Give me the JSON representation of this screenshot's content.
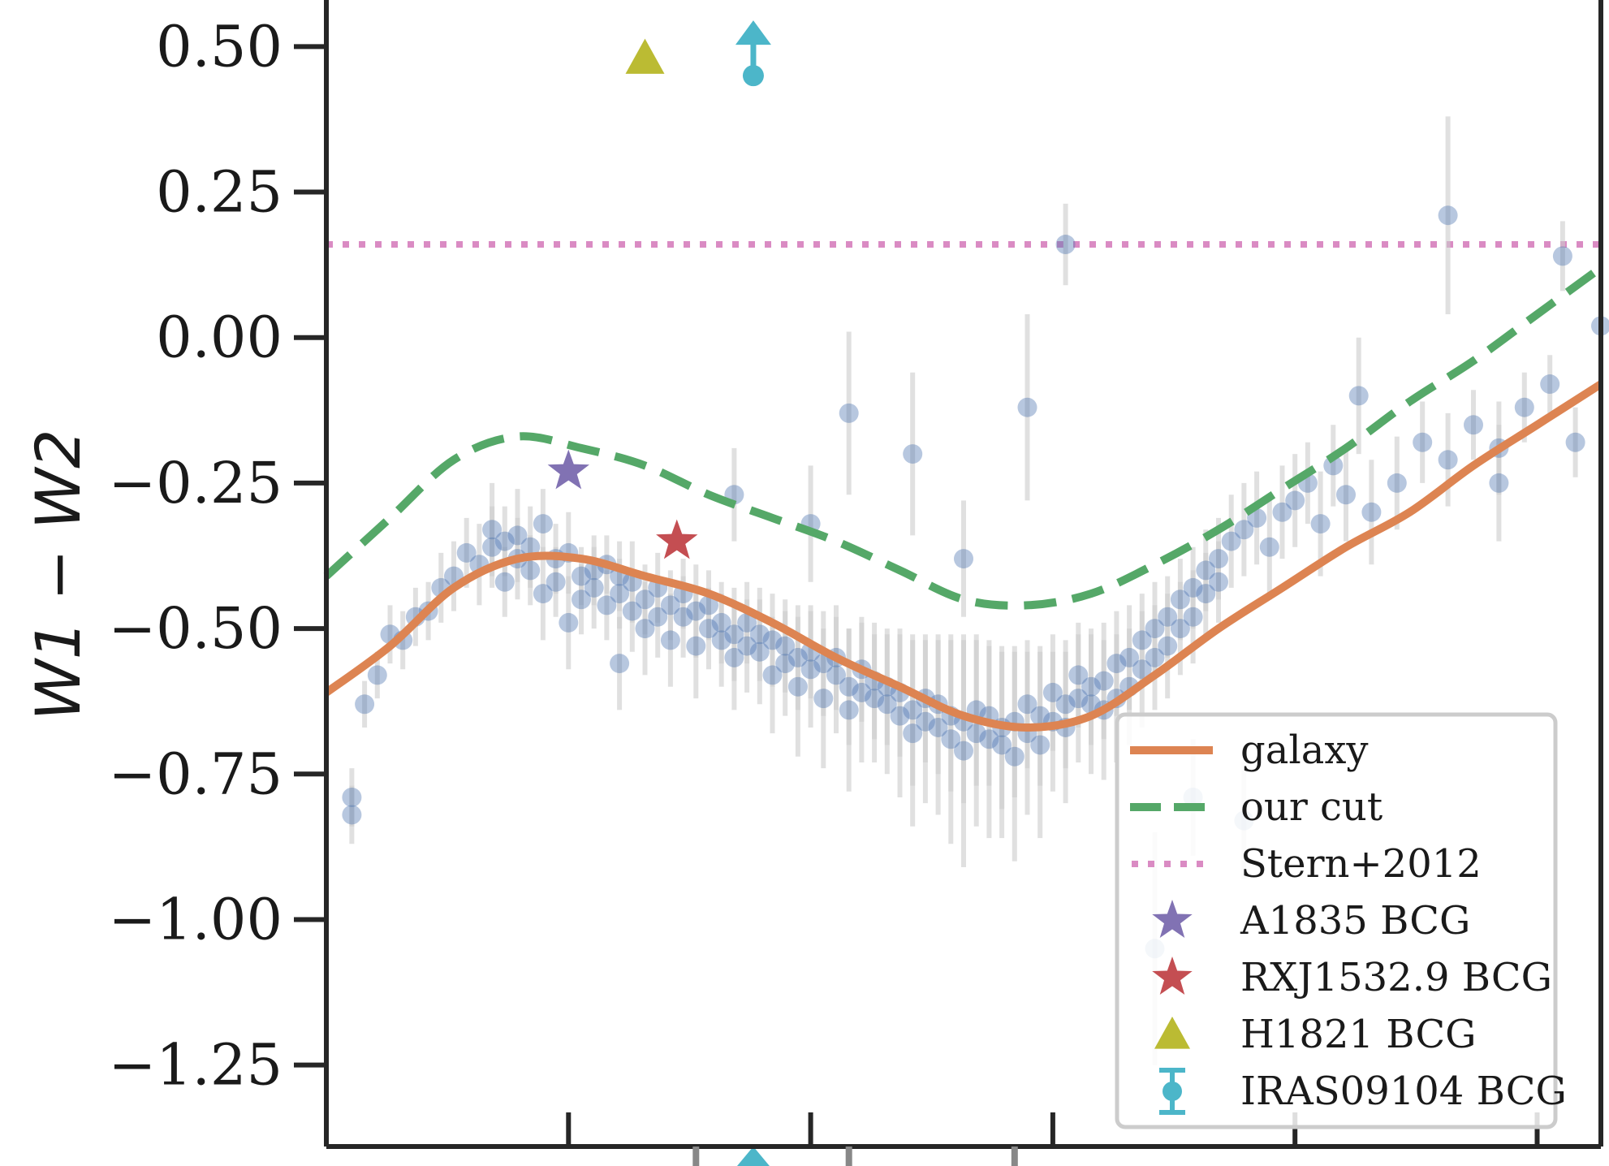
{
  "chart_data": {
    "type": "scatter",
    "ylabel": "W1 − W2",
    "ylim": [
      -1.39,
      0.58
    ],
    "xlim": [
      0,
      1
    ],
    "yticks": [
      {
        "value": 0.5,
        "label": "0.50"
      },
      {
        "value": 0.25,
        "label": "0.25"
      },
      {
        "value": 0.0,
        "label": "0.00"
      },
      {
        "value": -0.25,
        "label": "−0.25"
      },
      {
        "value": -0.5,
        "label": "−0.50"
      },
      {
        "value": -0.75,
        "label": "−0.75"
      },
      {
        "value": -1.0,
        "label": "−1.00"
      },
      {
        "value": -1.25,
        "label": "−1.25"
      }
    ],
    "xticks_major": [
      0.19,
      0.38,
      0.57,
      0.76,
      0.95
    ],
    "xticks_minor_bottom": [
      0.29,
      0.41,
      0.54
    ],
    "grid": false,
    "legend_position": "bottom-right",
    "colors": {
      "galaxy": "#dd8452",
      "cut": "#55a868",
      "stern": "#da8bc3",
      "points": "#4c72b0",
      "errorbars": "#cccccc",
      "a1835": "#8172b3",
      "rxj": "#c44e52",
      "h1821": "#bbbb33",
      "iras": "#4cb6c9"
    },
    "series": [
      {
        "name": "galaxy",
        "style": "solid",
        "x": [
          0.0,
          0.05,
          0.1,
          0.15,
          0.2,
          0.25,
          0.3,
          0.35,
          0.4,
          0.45,
          0.5,
          0.55,
          0.6,
          0.65,
          0.7,
          0.75,
          0.8,
          0.85,
          0.9,
          0.95,
          1.0
        ],
        "y": [
          -0.61,
          -0.53,
          -0.43,
          -0.38,
          -0.38,
          -0.41,
          -0.44,
          -0.49,
          -0.55,
          -0.6,
          -0.65,
          -0.67,
          -0.65,
          -0.58,
          -0.5,
          -0.43,
          -0.36,
          -0.3,
          -0.22,
          -0.15,
          -0.08
        ]
      },
      {
        "name": "our cut",
        "style": "dashed",
        "x": [
          0.0,
          0.05,
          0.1,
          0.15,
          0.2,
          0.25,
          0.3,
          0.35,
          0.4,
          0.45,
          0.5,
          0.55,
          0.6,
          0.65,
          0.7,
          0.75,
          0.8,
          0.85,
          0.9,
          0.95,
          1.0
        ],
        "y": [
          -0.41,
          -0.31,
          -0.21,
          -0.17,
          -0.19,
          -0.22,
          -0.27,
          -0.31,
          -0.35,
          -0.4,
          -0.45,
          -0.46,
          -0.44,
          -0.39,
          -0.33,
          -0.26,
          -0.19,
          -0.11,
          -0.04,
          0.04,
          0.12
        ]
      },
      {
        "name": "Stern+2012",
        "style": "dotted",
        "y_constant": 0.16
      }
    ],
    "scatter_points": {
      "x": [
        0.03,
        0.04,
        0.05,
        0.06,
        0.07,
        0.08,
        0.09,
        0.1,
        0.11,
        0.12,
        0.13,
        0.13,
        0.14,
        0.14,
        0.15,
        0.15,
        0.16,
        0.16,
        0.17,
        0.17,
        0.18,
        0.18,
        0.19,
        0.19,
        0.2,
        0.2,
        0.21,
        0.21,
        0.22,
        0.22,
        0.23,
        0.23,
        0.24,
        0.24,
        0.25,
        0.25,
        0.26,
        0.26,
        0.27,
        0.27,
        0.28,
        0.28,
        0.29,
        0.29,
        0.3,
        0.3,
        0.31,
        0.31,
        0.32,
        0.32,
        0.33,
        0.33,
        0.34,
        0.34,
        0.35,
        0.35,
        0.36,
        0.36,
        0.37,
        0.37,
        0.38,
        0.38,
        0.39,
        0.39,
        0.4,
        0.4,
        0.41,
        0.41,
        0.42,
        0.42,
        0.43,
        0.43,
        0.44,
        0.44,
        0.45,
        0.45,
        0.46,
        0.46,
        0.47,
        0.47,
        0.48,
        0.48,
        0.49,
        0.49,
        0.5,
        0.5,
        0.51,
        0.51,
        0.52,
        0.52,
        0.53,
        0.53,
        0.54,
        0.54,
        0.55,
        0.55,
        0.56,
        0.56,
        0.57,
        0.57,
        0.58,
        0.58,
        0.59,
        0.59,
        0.6,
        0.6,
        0.61,
        0.61,
        0.62,
        0.62,
        0.63,
        0.63,
        0.64,
        0.64,
        0.65,
        0.65,
        0.66,
        0.66,
        0.67,
        0.67,
        0.68,
        0.68,
        0.69,
        0.69,
        0.7,
        0.7,
        0.71,
        0.72,
        0.73,
        0.74,
        0.75,
        0.76,
        0.77,
        0.78,
        0.79,
        0.8,
        0.82,
        0.84,
        0.86,
        0.88,
        0.9,
        0.92,
        0.94,
        0.96,
        0.98,
        1.0
      ],
      "y": [
        -0.63,
        -0.58,
        -0.51,
        -0.52,
        -0.48,
        -0.47,
        -0.43,
        -0.41,
        -0.37,
        -0.39,
        -0.36,
        -0.33,
        -0.35,
        -0.42,
        -0.38,
        -0.34,
        -0.4,
        -0.36,
        -0.32,
        -0.44,
        -0.42,
        -0.38,
        -0.37,
        -0.49,
        -0.41,
        -0.45,
        -0.4,
        -0.43,
        -0.46,
        -0.39,
        -0.44,
        -0.41,
        -0.42,
        -0.47,
        -0.45,
        -0.5,
        -0.43,
        -0.48,
        -0.46,
        -0.52,
        -0.48,
        -0.44,
        -0.47,
        -0.53,
        -0.5,
        -0.46,
        -0.52,
        -0.49,
        -0.51,
        -0.55,
        -0.53,
        -0.49,
        -0.54,
        -0.51,
        -0.52,
        -0.58,
        -0.56,
        -0.53,
        -0.55,
        -0.6,
        -0.57,
        -0.54,
        -0.56,
        -0.62,
        -0.58,
        -0.55,
        -0.6,
        -0.64,
        -0.61,
        -0.57,
        -0.62,
        -0.59,
        -0.63,
        -0.6,
        -0.65,
        -0.61,
        -0.64,
        -0.68,
        -0.66,
        -0.62,
        -0.67,
        -0.63,
        -0.65,
        -0.69,
        -0.66,
        -0.71,
        -0.68,
        -0.64,
        -0.69,
        -0.65,
        -0.7,
        -0.67,
        -0.72,
        -0.66,
        -0.68,
        -0.63,
        -0.7,
        -0.65,
        -0.66,
        -0.61,
        -0.67,
        -0.63,
        -0.62,
        -0.58,
        -0.63,
        -0.6,
        -0.59,
        -0.64,
        -0.62,
        -0.56,
        -0.6,
        -0.55,
        -0.57,
        -0.52,
        -0.55,
        -0.5,
        -0.53,
        -0.48,
        -0.5,
        -0.45,
        -0.48,
        -0.43,
        -0.44,
        -0.4,
        -0.42,
        -0.38,
        -0.35,
        -0.33,
        -0.31,
        -0.36,
        -0.3,
        -0.28,
        -0.25,
        -0.32,
        -0.22,
        -0.27,
        -0.3,
        -0.25,
        -0.18,
        -0.21,
        -0.15,
        -0.19,
        -0.12,
        -0.08,
        -0.18,
        0.02
      ],
      "yerr": [
        0.04,
        0.04,
        0.05,
        0.05,
        0.05,
        0.05,
        0.06,
        0.06,
        0.06,
        0.07,
        0.07,
        0.08,
        0.06,
        0.06,
        0.07,
        0.08,
        0.06,
        0.07,
        0.06,
        0.08,
        0.06,
        0.06,
        0.07,
        0.08,
        0.05,
        0.06,
        0.06,
        0.07,
        0.06,
        0.05,
        0.06,
        0.06,
        0.07,
        0.07,
        0.06,
        0.08,
        0.06,
        0.07,
        0.06,
        0.08,
        0.07,
        0.06,
        0.08,
        0.09,
        0.07,
        0.06,
        0.08,
        0.07,
        0.08,
        0.09,
        0.08,
        0.07,
        0.09,
        0.08,
        0.08,
        0.1,
        0.09,
        0.08,
        0.09,
        0.12,
        0.1,
        0.08,
        0.09,
        0.12,
        0.1,
        0.09,
        0.1,
        0.14,
        0.12,
        0.09,
        0.11,
        0.1,
        0.12,
        0.1,
        0.14,
        0.11,
        0.13,
        0.16,
        0.14,
        0.11,
        0.15,
        0.12,
        0.13,
        0.18,
        0.14,
        0.2,
        0.16,
        0.13,
        0.17,
        0.12,
        0.16,
        0.14,
        0.18,
        0.13,
        0.14,
        0.11,
        0.16,
        0.12,
        0.12,
        0.1,
        0.13,
        0.11,
        0.11,
        0.09,
        0.12,
        0.1,
        0.1,
        0.12,
        0.11,
        0.09,
        0.1,
        0.09,
        0.1,
        0.08,
        0.09,
        0.08,
        0.09,
        0.07,
        0.08,
        0.07,
        0.08,
        0.07,
        0.07,
        0.07,
        0.07,
        0.07,
        0.08,
        0.08,
        0.08,
        0.09,
        0.08,
        0.08,
        0.07,
        0.09,
        0.07,
        0.08,
        0.09,
        0.08,
        0.07,
        0.08,
        0.06,
        0.08,
        0.06,
        0.05,
        0.06,
        0.04
      ]
    },
    "outliers": {
      "x": [
        0.02,
        0.02,
        0.23,
        0.32,
        0.38,
        0.41,
        0.46,
        0.5,
        0.55,
        0.58,
        0.65,
        0.68,
        0.72,
        0.81,
        0.88,
        0.92,
        0.97
      ],
      "y": [
        -0.82,
        -0.79,
        -0.56,
        -0.27,
        -0.32,
        -0.13,
        -0.2,
        -0.38,
        -0.12,
        0.16,
        -1.05,
        -0.79,
        -0.83,
        -0.1,
        0.21,
        -0.25,
        0.14
      ],
      "yerr": [
        0.05,
        0.05,
        0.08,
        0.08,
        0.1,
        0.14,
        0.14,
        0.1,
        0.16,
        0.07,
        0.2,
        0.1,
        0.1,
        0.1,
        0.17,
        0.1,
        0.06
      ]
    },
    "markers": [
      {
        "name": "A1835 BCG",
        "marker": "star",
        "x": 0.19,
        "y": -0.23
      },
      {
        "name": "RXJ1532.9 BCG",
        "marker": "star",
        "x": 0.275,
        "y": -0.35
      },
      {
        "name": "H1821 BCG",
        "marker": "triangle",
        "x": 0.25,
        "y": 0.48
      },
      {
        "name": "IRAS09104 BCG",
        "marker": "errorbar-lower-limit",
        "x": 0.335,
        "y": 0.45
      }
    ],
    "legend": [
      {
        "label": "galaxy",
        "kind": "solid",
        "color_key": "galaxy"
      },
      {
        "label": "our cut",
        "kind": "dashed",
        "color_key": "cut"
      },
      {
        "label": "Stern+2012",
        "kind": "dotted",
        "color_key": "stern"
      },
      {
        "label": "A1835 BCG",
        "kind": "star",
        "color_key": "a1835"
      },
      {
        "label": "RXJ1532.9 BCG",
        "kind": "star",
        "color_key": "rxj"
      },
      {
        "label": "H1821 BCG",
        "kind": "triangle",
        "color_key": "h1821"
      },
      {
        "label": "IRAS09104 BCG",
        "kind": "errorbar",
        "color_key": "iras"
      }
    ]
  }
}
